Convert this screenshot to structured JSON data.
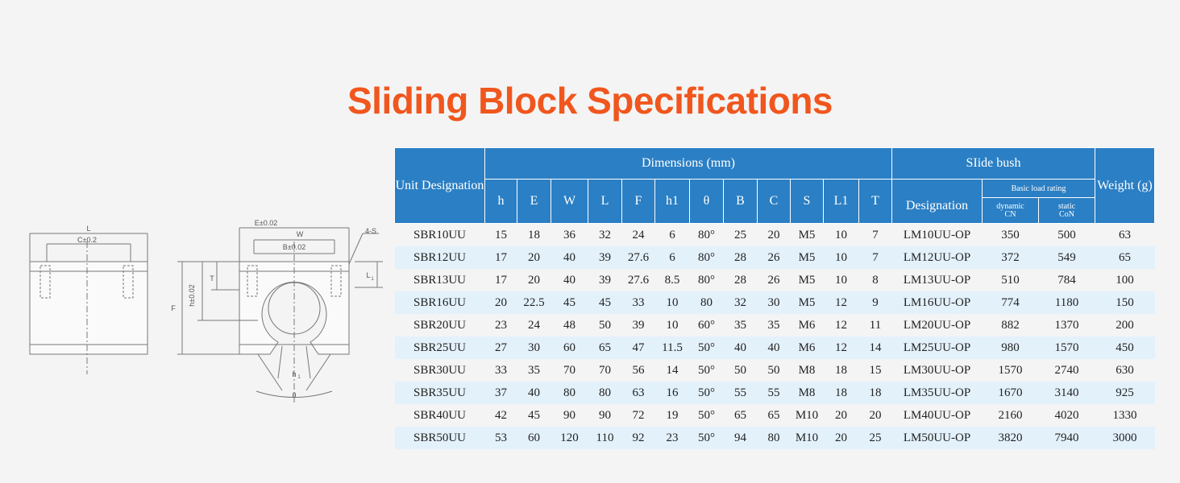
{
  "title": "Sliding Block Specifications",
  "drawing": {
    "labels": {
      "L": "L",
      "C": "C±0.2",
      "E": "E±0.02",
      "W": "W",
      "B": "B±0.02",
      "S": "4-S",
      "T": "T",
      "L1": "L",
      "L1sub": "1",
      "F": "F",
      "h": "h±0.02",
      "h1": "h",
      "h1sub": "1",
      "theta": "θ"
    }
  },
  "table": {
    "header": {
      "unit": "Unit Designation",
      "dimensions": "Dimensions (mm)",
      "slide_bush": "SIide bush",
      "weight": "Weight (g)",
      "designation": "Designation",
      "basic_load": "Basic load rating",
      "dynamic": "dynamic",
      "dynamic_unit": "CN",
      "static": "static",
      "static_unit": "CoN",
      "dims": [
        "h",
        "E",
        "W",
        "L",
        "F",
        "h1",
        "θ",
        "B",
        "C",
        "S",
        "L1",
        "T"
      ]
    },
    "rows": [
      {
        "unit": "SBR10UU",
        "h": "15",
        "E": "18",
        "W": "36",
        "L": "32",
        "F": "24",
        "h1": "6",
        "theta": "80°",
        "B": "25",
        "C": "20",
        "S": "M5",
        "L1": "10",
        "T": "7",
        "designation": "LM10UU-OP",
        "dynamic": "350",
        "static": "500",
        "weight": "63"
      },
      {
        "unit": "SBR12UU",
        "h": "17",
        "E": "20",
        "W": "40",
        "L": "39",
        "F": "27.6",
        "h1": "6",
        "theta": "80°",
        "B": "28",
        "C": "26",
        "S": "M5",
        "L1": "10",
        "T": "7",
        "designation": "LM12UU-OP",
        "dynamic": "372",
        "static": "549",
        "weight": "65"
      },
      {
        "unit": "SBR13UU",
        "h": "17",
        "E": "20",
        "W": "40",
        "L": "39",
        "F": "27.6",
        "h1": "8.5",
        "theta": "80°",
        "B": "28",
        "C": "26",
        "S": "M5",
        "L1": "10",
        "T": "8",
        "designation": "LM13UU-OP",
        "dynamic": "510",
        "static": "784",
        "weight": "100"
      },
      {
        "unit": "SBR16UU",
        "h": "20",
        "E": "22.5",
        "W": "45",
        "L": "45",
        "F": "33",
        "h1": "10",
        "theta": "80",
        "B": "32",
        "C": "30",
        "S": "M5",
        "L1": "12",
        "T": "9",
        "designation": "LM16UU-OP",
        "dynamic": "774",
        "static": "1180",
        "weight": "150"
      },
      {
        "unit": "SBR20UU",
        "h": "23",
        "E": "24",
        "W": "48",
        "L": "50",
        "F": "39",
        "h1": "10",
        "theta": "60°",
        "B": "35",
        "C": "35",
        "S": "M6",
        "L1": "12",
        "T": "11",
        "designation": "LM20UU-OP",
        "dynamic": "882",
        "static": "1370",
        "weight": "200"
      },
      {
        "unit": "SBR25UU",
        "h": "27",
        "E": "30",
        "W": "60",
        "L": "65",
        "F": "47",
        "h1": "11.5",
        "theta": "50°",
        "B": "40",
        "C": "40",
        "S": "M6",
        "L1": "12",
        "T": "14",
        "designation": "LM25UU-OP",
        "dynamic": "980",
        "static": "1570",
        "weight": "450"
      },
      {
        "unit": "SBR30UU",
        "h": "33",
        "E": "35",
        "W": "70",
        "L": "70",
        "F": "56",
        "h1": "14",
        "theta": "50°",
        "B": "50",
        "C": "50",
        "S": "M8",
        "L1": "18",
        "T": "15",
        "designation": "LM30UU-OP",
        "dynamic": "1570",
        "static": "2740",
        "weight": "630"
      },
      {
        "unit": "SBR35UU",
        "h": "37",
        "E": "40",
        "W": "80",
        "L": "80",
        "F": "63",
        "h1": "16",
        "theta": "50°",
        "B": "55",
        "C": "55",
        "S": "M8",
        "L1": "18",
        "T": "18",
        "designation": "LM35UU-OP",
        "dynamic": "1670",
        "static": "3140",
        "weight": "925"
      },
      {
        "unit": "SBR40UU",
        "h": "42",
        "E": "45",
        "W": "90",
        "L": "90",
        "F": "72",
        "h1": "19",
        "theta": "50°",
        "B": "65",
        "C": "65",
        "S": "M10",
        "L1": "20",
        "T": "20",
        "designation": "LM40UU-OP",
        "dynamic": "2160",
        "static": "4020",
        "weight": "1330"
      },
      {
        "unit": "SBR50UU",
        "h": "53",
        "E": "60",
        "W": "120",
        "L": "110",
        "F": "92",
        "h1": "23",
        "theta": "50°",
        "B": "94",
        "C": "80",
        "S": "M10",
        "L1": "20",
        "T": "25",
        "designation": "LM50UU-OP",
        "dynamic": "3820",
        "static": "7940",
        "weight": "3000"
      }
    ]
  }
}
